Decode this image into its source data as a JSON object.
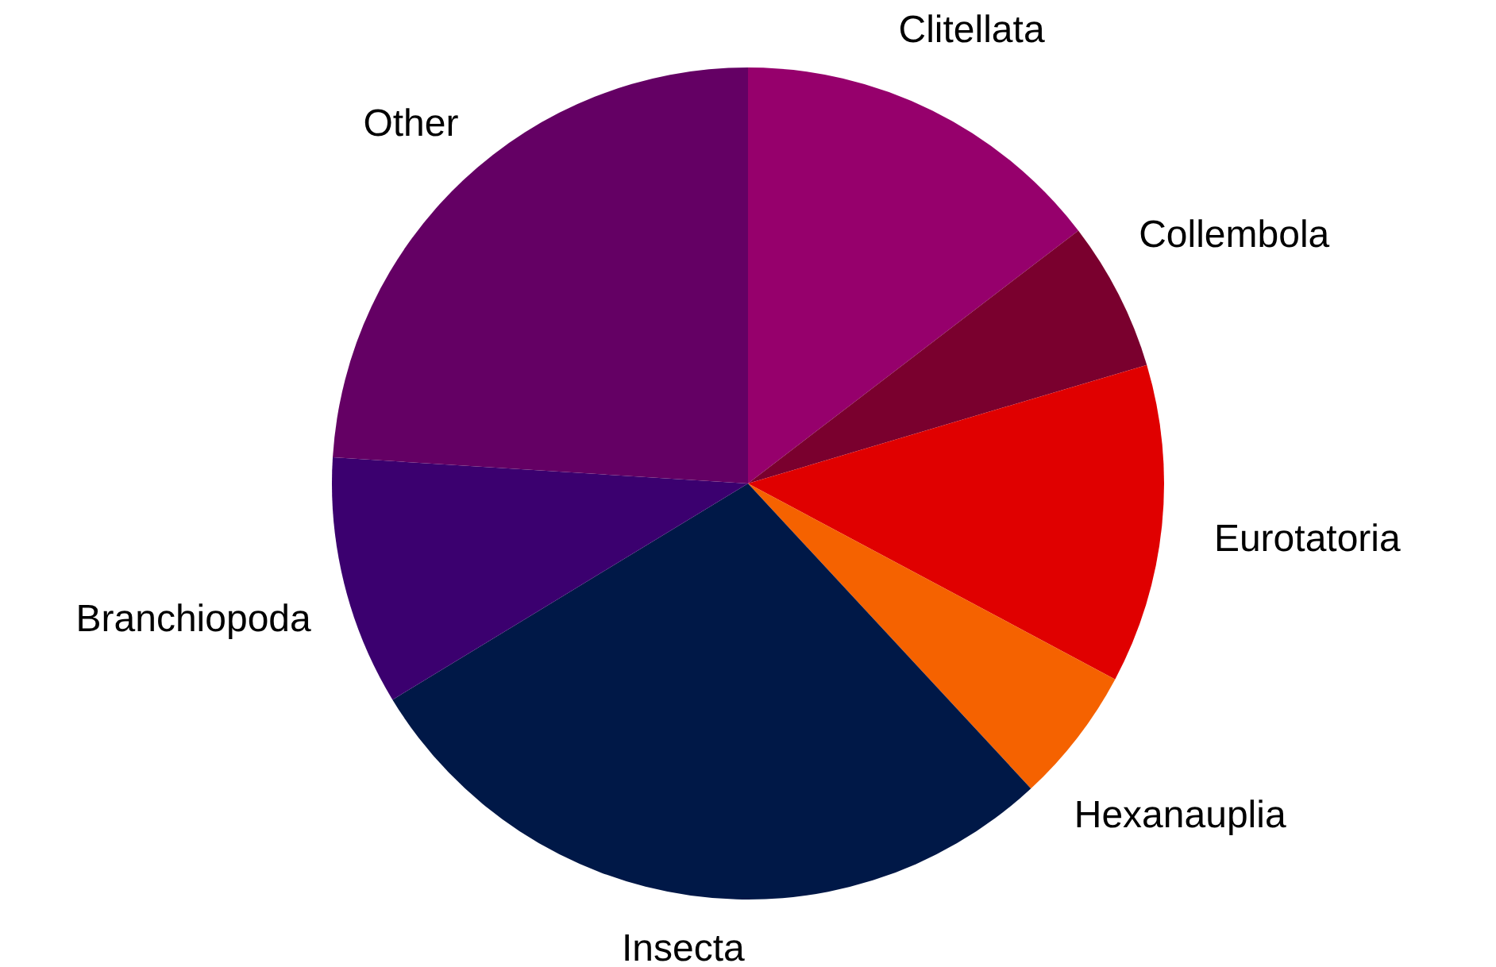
{
  "chart_data": {
    "type": "pie",
    "categories": [
      "Clitellata",
      "Collembola",
      "Eurotatoria",
      "Hexanauplia",
      "Insecta",
      "Branchiopoda",
      "Other"
    ],
    "values": [
      14.6,
      5.8,
      12.4,
      5.3,
      28.2,
      9.7,
      24.0
    ],
    "colors": [
      "#96006c",
      "#7a002e",
      "#e00000",
      "#f56200",
      "#001847",
      "#3b006f",
      "#640064"
    ]
  }
}
